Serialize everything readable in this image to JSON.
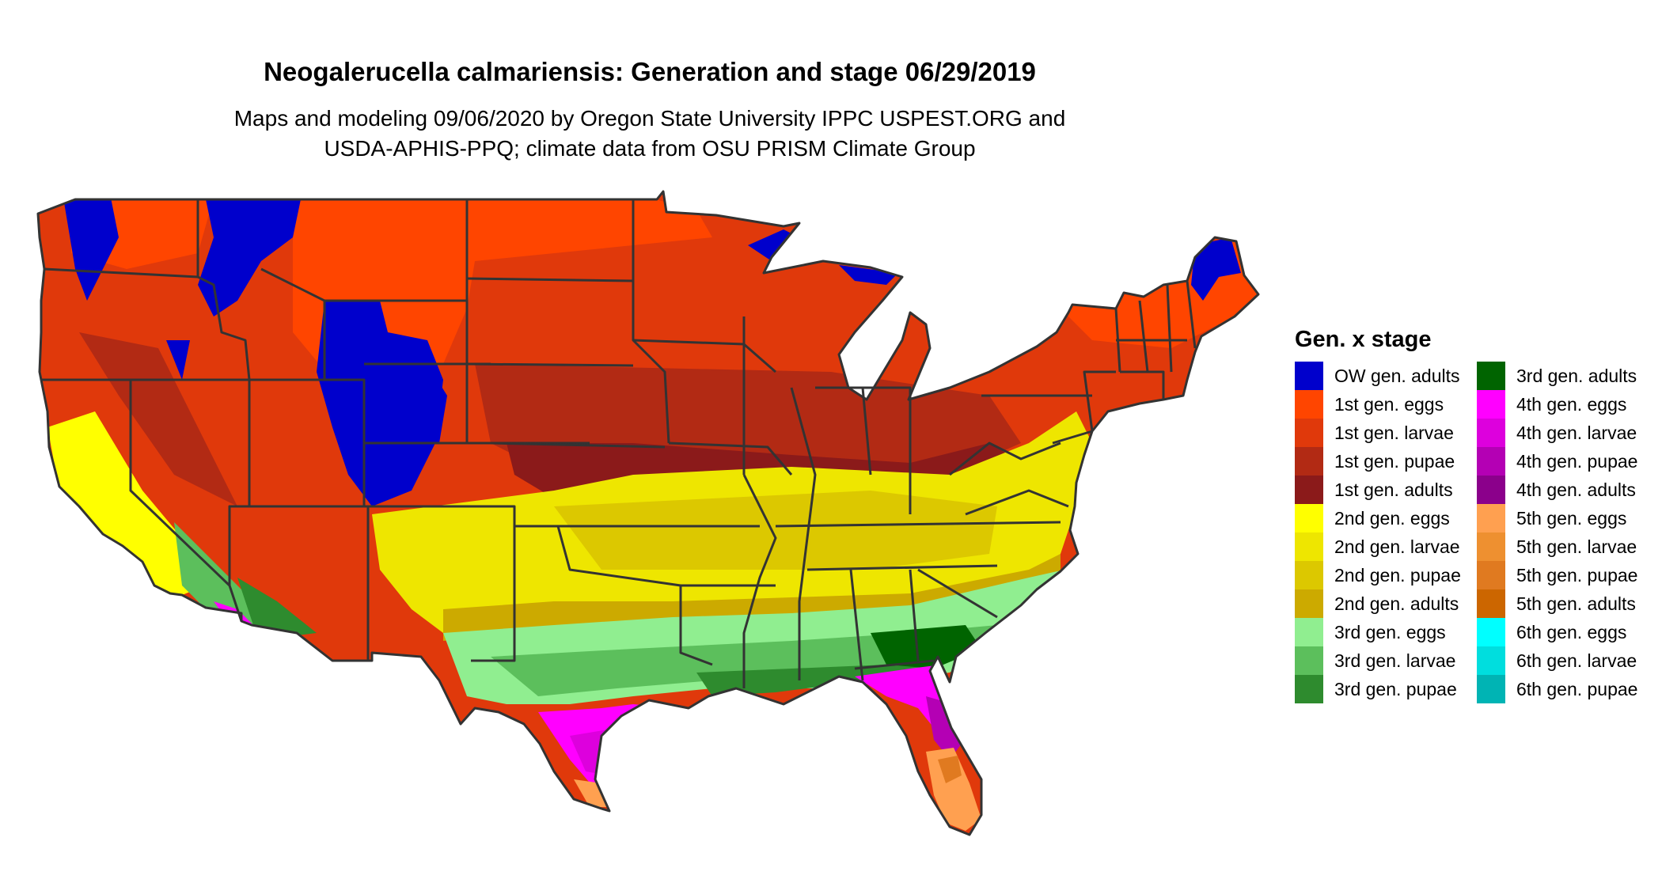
{
  "title": "Neogalerucella calmariensis: Generation and stage 06/29/2019",
  "subtitle_lines": [
    "Maps and modeling 09/06/2020 by Oregon State University IPPC USPEST.ORG and",
    "USDA-APHIS-PPQ; climate data from OSU PRISM Climate Group"
  ],
  "legend": {
    "title": "Gen. x stage",
    "items": [
      {
        "label": "OW gen. adults",
        "color": "#0000cc"
      },
      {
        "label": "1st gen. eggs",
        "color": "#ff4500"
      },
      {
        "label": "1st gen. larvae",
        "color": "#e0390b"
      },
      {
        "label": "1st gen. pupae",
        "color": "#b22a14"
      },
      {
        "label": "1st gen. adults",
        "color": "#8b1a1a"
      },
      {
        "label": "2nd gen. eggs",
        "color": "#ffff00"
      },
      {
        "label": "2nd gen. larvae",
        "color": "#eee600"
      },
      {
        "label": "2nd gen. pupae",
        "color": "#dcc800"
      },
      {
        "label": "2nd gen. adults",
        "color": "#ccaa00"
      },
      {
        "label": "3rd gen. eggs",
        "color": "#90ee90"
      },
      {
        "label": "3rd gen. larvae",
        "color": "#5cbf5c"
      },
      {
        "label": "3rd gen. pupae",
        "color": "#2e8b2e"
      },
      {
        "label": "3rd gen. adults",
        "color": "#006400"
      },
      {
        "label": "4th gen. eggs",
        "color": "#ff00ff"
      },
      {
        "label": "4th gen. larvae",
        "color": "#dd00dd"
      },
      {
        "label": "4th gen. pupae",
        "color": "#b400b4"
      },
      {
        "label": "4th gen. adults",
        "color": "#8b008b"
      },
      {
        "label": "5th gen. eggs",
        "color": "#ffa050"
      },
      {
        "label": "5th gen. larvae",
        "color": "#ee9030"
      },
      {
        "label": "5th gen. pupae",
        "color": "#e07a20"
      },
      {
        "label": "5th gen. adults",
        "color": "#cc6600"
      },
      {
        "label": "6th gen. eggs",
        "color": "#00ffff"
      },
      {
        "label": "6th gen. larvae",
        "color": "#00dede"
      },
      {
        "label": "6th gen. pupae",
        "color": "#00b4b4"
      }
    ]
  }
}
